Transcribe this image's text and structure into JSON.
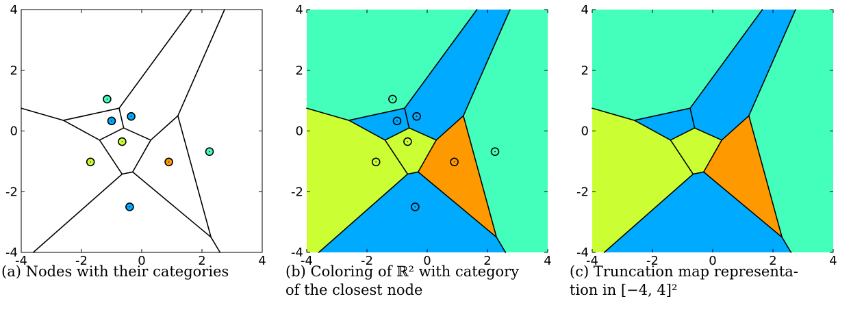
{
  "axes": {
    "range": [
      -4,
      4
    ],
    "xticks": [
      "-4",
      "-2",
      "0",
      "2",
      "4"
    ],
    "yticks": [
      "4",
      "2",
      "0",
      "-2",
      "-4"
    ]
  },
  "captions": {
    "a": [
      "(a) Nodes with their categories"
    ],
    "b": [
      "(b) Coloring of ℝ² with category",
      "of the closest node"
    ],
    "c": [
      "(c)  Truncation map representa-",
      "tion in [−4, 4]²"
    ]
  },
  "colors": {
    "teal": "#44ffbb",
    "blue": "#00aaff",
    "yellow": "#ccff33",
    "orange": "#ff9900"
  },
  "chart_data": [
    {
      "type": "scatter",
      "title": "",
      "xlim": [
        -4,
        4
      ],
      "ylim": [
        -4,
        4
      ],
      "nodes": [
        {
          "x": -1.15,
          "y": 1.05,
          "category": "teal"
        },
        {
          "x": -0.35,
          "y": 0.48,
          "category": "blue"
        },
        {
          "x": -1.0,
          "y": 0.33,
          "category": "blue"
        },
        {
          "x": -0.65,
          "y": -0.35,
          "category": "yellow"
        },
        {
          "x": -1.7,
          "y": -1.02,
          "category": "yellow"
        },
        {
          "x": 0.9,
          "y": -1.02,
          "category": "orange"
        },
        {
          "x": 2.25,
          "y": -0.68,
          "category": "teal"
        },
        {
          "x": -0.4,
          "y": -2.5,
          "category": "blue"
        }
      ],
      "boundaries": [
        [
          [
            -4,
            0.75
          ],
          [
            -2.6,
            0.35
          ]
        ],
        [
          [
            -2.6,
            0.35
          ],
          [
            -0.75,
            0.75
          ]
        ],
        [
          [
            -0.75,
            0.75
          ],
          [
            1.65,
            4
          ]
        ],
        [
          [
            -0.75,
            0.75
          ],
          [
            -0.6,
            0.1
          ]
        ],
        [
          [
            -0.6,
            0.1
          ],
          [
            0.3,
            -0.3
          ]
        ],
        [
          [
            0.3,
            -0.3
          ],
          [
            1.2,
            0.5
          ]
        ],
        [
          [
            1.2,
            0.5
          ],
          [
            2.75,
            4
          ]
        ],
        [
          [
            1.2,
            0.5
          ],
          [
            2.3,
            -3.5
          ]
        ],
        [
          [
            -2.6,
            0.35
          ],
          [
            -1.4,
            -0.3
          ]
        ],
        [
          [
            -1.4,
            -0.3
          ],
          [
            -0.6,
            0.1
          ]
        ],
        [
          [
            -1.4,
            -0.3
          ],
          [
            -0.65,
            -1.42
          ]
        ],
        [
          [
            -0.65,
            -1.42
          ],
          [
            -0.3,
            -1.35
          ]
        ],
        [
          [
            -0.3,
            -1.35
          ],
          [
            0.3,
            -0.3
          ]
        ],
        [
          [
            -0.65,
            -1.42
          ],
          [
            -3.6,
            -4
          ]
        ],
        [
          [
            -0.3,
            -1.35
          ],
          [
            2.3,
            -3.5
          ]
        ],
        [
          [
            2.3,
            -3.5
          ],
          [
            2.6,
            -4
          ]
        ]
      ]
    }
  ]
}
